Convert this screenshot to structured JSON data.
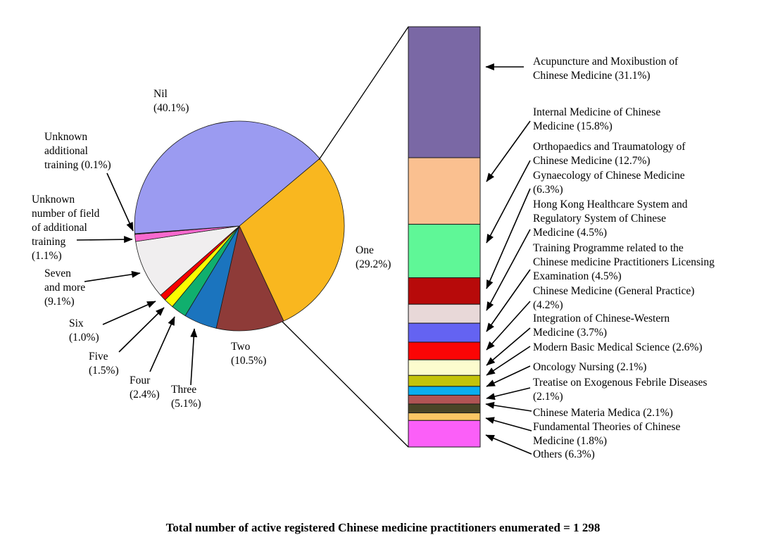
{
  "caption": "Total number of active registered Chinese medicine practitioners enumerated = 1 298",
  "chart_data": [
    {
      "type": "pie",
      "unit": "%",
      "legend_position": "none",
      "categories": [
        "Nil",
        "One",
        "Two",
        "Three",
        "Four",
        "Five",
        "Six",
        "Seven and more",
        "Unknown number of field of additional training",
        "Unknown additional training"
      ],
      "values": [
        40.1,
        29.2,
        10.5,
        5.1,
        2.4,
        1.5,
        1.0,
        9.1,
        1.1,
        0.1
      ],
      "labels": [
        "Nil\n(40.1%)",
        "One\n(29.2%)",
        "Two\n(10.5%)",
        "Three\n(5.1%)",
        "Four\n(2.4%)",
        "Five\n(1.5%)",
        "Six\n(1.0%)",
        "Seven\nand more\n(9.1%)",
        "Unknown\nnumber of field\nof additional\ntraining\n(1.1%)",
        "Unknown\nadditional\ntraining (0.1%)"
      ],
      "colors": [
        "#9B9BF1",
        "#F9B71F",
        "#8E3B38",
        "#1B74BE",
        "#10AF6E",
        "#FCFC00",
        "#F80000",
        "#F0EEEF",
        "#F869CE",
        "#B96BD6"
      ]
    },
    {
      "type": "bar",
      "stacked": true,
      "unit": "%",
      "categories": [
        "Acupuncture and Moxibustion of Chinese Medicine",
        "Internal Medicine of Chinese Medicine",
        "Orthopaedics and Traumatology of Chinese Medicine",
        "Gynaecology of Chinese Medicine",
        "Hong Kong Healthcare System and Regulatory System of Chinese Medicine",
        "Training Programme related to the Chinese medicine Practitioners Licensing Examination",
        "Chinese Medicine (General Practice)",
        "Integration of Chinese-Western Medicine",
        "Modern Basic Medical Science",
        "Oncology Nursing",
        "Treatise on Exogenous Febrile Diseases",
        "Chinese Materia Medica",
        "Fundamental Theories of Chinese Medicine",
        "Others"
      ],
      "values": [
        31.1,
        15.8,
        12.7,
        6.3,
        4.5,
        4.5,
        4.2,
        3.7,
        2.6,
        2.1,
        2.1,
        2.1,
        1.8,
        6.3
      ],
      "labels": [
        "Acupuncture and Moxibustion of\nChinese Medicine (31.1%)",
        "Internal Medicine of Chinese\nMedicine (15.8%)",
        "Orthopaedics and Traumatology of\nChinese Medicine (12.7%)",
        "Gynaecology of Chinese Medicine\n(6.3%)",
        "Hong Kong Healthcare System and\nRegulatory System of Chinese\nMedicine (4.5%)",
        "Training Programme related to the\nChinese medicine Practitioners Licensing\nExamination (4.5%)",
        "Chinese Medicine (General Practice)\n(4.2%)",
        "Integration of Chinese-Western\nMedicine (3.7%)",
        "Modern Basic Medical Science (2.6%)",
        "Oncology Nursing (2.1%)",
        "Treatise on Exogenous Febrile Diseases\n(2.1%)",
        "Chinese Materia Medica (2.1%)",
        "Fundamental Theories of Chinese\nMedicine (1.8%)",
        "Others (6.3%)"
      ],
      "colors": [
        "#7A68A5",
        "#FAC090",
        "#5FF797",
        "#B70A0A",
        "#E8D8D8",
        "#6463F2",
        "#FB0505",
        "#FCFCCE",
        "#C3C30A",
        "#0AAEEF",
        "#B05454",
        "#4A4527",
        "#FBC765",
        "#FB5FF8"
      ]
    }
  ]
}
